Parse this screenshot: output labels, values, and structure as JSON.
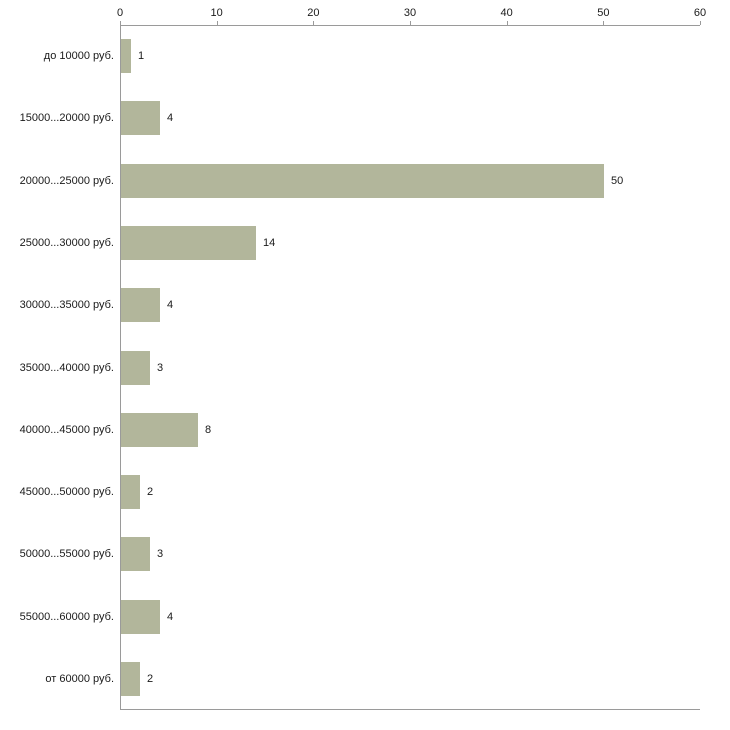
{
  "chart_data": {
    "type": "bar",
    "orientation": "horizontal",
    "title": "",
    "categories": [
      "до 10000 руб.",
      "15000...20000 руб.",
      "20000...25000 руб.",
      "25000...30000 руб.",
      "30000...35000 руб.",
      "35000...40000 руб.",
      "40000...45000 руб.",
      "45000...50000 руб.",
      "50000...55000 руб.",
      "55000...60000 руб.",
      "от 60000 руб."
    ],
    "values": [
      1,
      4,
      50,
      14,
      4,
      3,
      8,
      2,
      3,
      4,
      2
    ],
    "xlabel": "",
    "ylabel": "",
    "xlim": [
      0,
      60
    ],
    "x_ticks": [
      0,
      10,
      20,
      30,
      40,
      50,
      60
    ],
    "x_axis_position": "top",
    "grid": false,
    "legend_position": "none",
    "value_labels": true,
    "bar_color": "#b2b69b",
    "axis_color": "#9a9a9a",
    "text_color": "#1a1a1a",
    "background_color": "#ffffff"
  }
}
